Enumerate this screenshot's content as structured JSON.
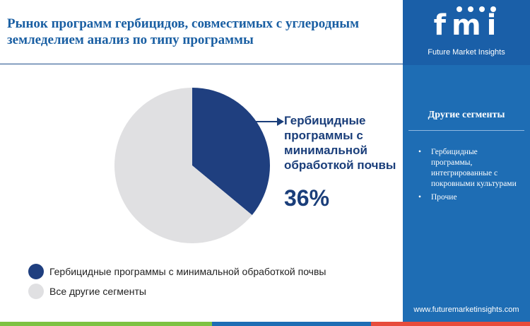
{
  "header": {
    "title": "Рынок программ гербицидов, совместимых с углеродным земледелием анализ по типу программы"
  },
  "brand": {
    "logo_text": "fmi",
    "company_name": "Future Market Insights",
    "website": "www.futuremarketinsights.com"
  },
  "sidebar": {
    "heading": "Другие сегменты",
    "items": [
      {
        "label": "Гербицидные программы, интегрированные с покровными культурами"
      },
      {
        "label": "Прочие"
      }
    ]
  },
  "callout": {
    "label": "Гербицидные программы с минимальной обработкой почвы",
    "value": "36%"
  },
  "colors": {
    "primary": "#1f3f7f",
    "secondary": "#e0e0e2",
    "accent": "#1e6db4"
  },
  "chart_data": {
    "type": "pie",
    "series": [
      {
        "name": "Гербицидные программы с минимальной обработкой почвы",
        "value": 36,
        "color": "#1f3f7f"
      },
      {
        "name": "Все другие сегменты",
        "value": 64,
        "color": "#e0e0e2"
      }
    ],
    "legend_placement": "bottom-left"
  }
}
